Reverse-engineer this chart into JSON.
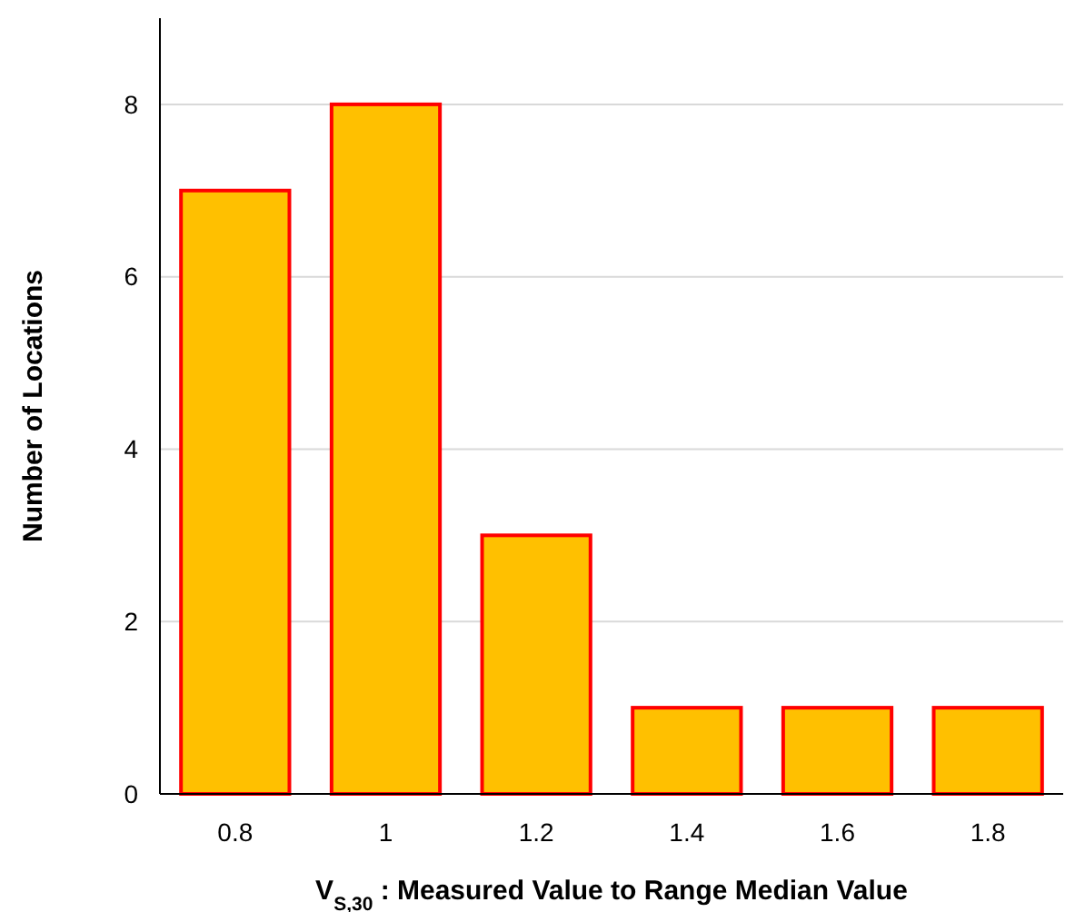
{
  "chart_data": {
    "type": "bar",
    "xlabel": "V$_{S,30}$ : Measured Value to Range Median Value",
    "ylabel": "Number of Locations",
    "categories": [
      "0.8",
      "1",
      "1.2",
      "1.4",
      "1.6",
      "1.8"
    ],
    "values": [
      7,
      8,
      3,
      1,
      1,
      1
    ],
    "color": "#ffc000",
    "ylim": [
      0,
      9
    ],
    "yticks": [
      0,
      2,
      4,
      6,
      8
    ],
    "grid": "y"
  }
}
